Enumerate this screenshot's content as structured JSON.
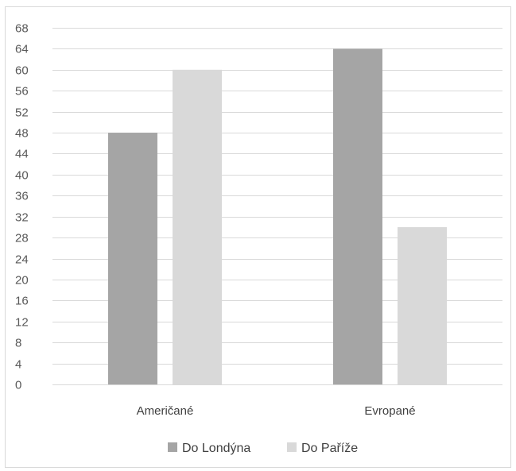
{
  "chart_data": {
    "type": "bar",
    "title": "",
    "xlabel": "",
    "ylabel": "",
    "categories": [
      "Američané",
      "Evropané"
    ],
    "series": [
      {
        "name": "Do Londýna",
        "values": [
          48,
          64
        ],
        "color": "#a5a5a5"
      },
      {
        "name": "Do Paříže",
        "values": [
          60,
          30
        ],
        "color": "#d9d9d9"
      }
    ],
    "ylim": [
      0,
      68
    ],
    "yticks": [
      0,
      4,
      8,
      12,
      16,
      20,
      24,
      28,
      32,
      36,
      40,
      44,
      48,
      52,
      56,
      60,
      64,
      68
    ],
    "grid": true,
    "legend_position": "bottom"
  }
}
